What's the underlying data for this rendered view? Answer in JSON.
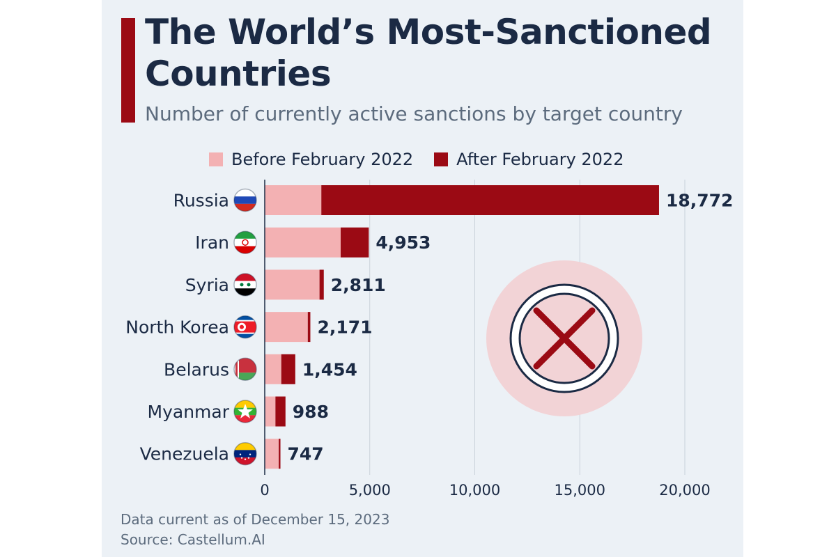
{
  "title": "The World’s Most-Sanctioned Countries",
  "subtitle": "Number of currently active sanctions by target country",
  "legend": [
    {
      "label": "Before February 2022",
      "color": "#f3b1b3"
    },
    {
      "label": "After February 2022",
      "color": "#9b0a14"
    }
  ],
  "footer": {
    "note": "Data current as of December 15, 2023",
    "source": "Source: Castellum.AI"
  },
  "colors": {
    "accent": "#9b0a14",
    "before": "#f3b1b3",
    "after": "#9b0a14",
    "title": "#1b2a44",
    "muted": "#5c6b7d",
    "background": "#ecf1f6"
  },
  "chart_data": {
    "type": "bar",
    "orientation": "horizontal",
    "stacked": true,
    "title": "The World’s Most-Sanctioned Countries",
    "subtitle": "Number of currently active sanctions by target country",
    "xlabel": "",
    "ylabel": "",
    "xlim": [
      0,
      20000
    ],
    "xticks": [
      0,
      5000,
      10000,
      15000,
      20000
    ],
    "xtick_labels": [
      "0",
      "5,000",
      "10,000",
      "15,000",
      "20,000"
    ],
    "grid": "vertical",
    "legend_position": "top",
    "categories": [
      "Russia",
      "Iran",
      "Syria",
      "North Korea",
      "Belarus",
      "Myanmar",
      "Venezuela"
    ],
    "flag_icons": [
      "russia-flag-icon",
      "iran-flag-icon",
      "syria-flag-icon",
      "north-korea-flag-icon",
      "belarus-flag-icon",
      "myanmar-flag-icon",
      "venezuela-flag-icon"
    ],
    "series": [
      {
        "name": "Before February 2022",
        "values": [
          2695,
          3616,
          2608,
          2050,
          788,
          510,
          667
        ]
      },
      {
        "name": "After February 2022",
        "values": [
          16077,
          1337,
          203,
          121,
          666,
          478,
          80
        ]
      }
    ],
    "totals": [
      18772,
      4953,
      2811,
      2171,
      1454,
      988,
      747
    ],
    "total_labels": [
      "18,772",
      "4,953",
      "2,811",
      "2,171",
      "1,454",
      "988",
      "747"
    ],
    "decoration_icon": "sanctions-cross-icon"
  }
}
